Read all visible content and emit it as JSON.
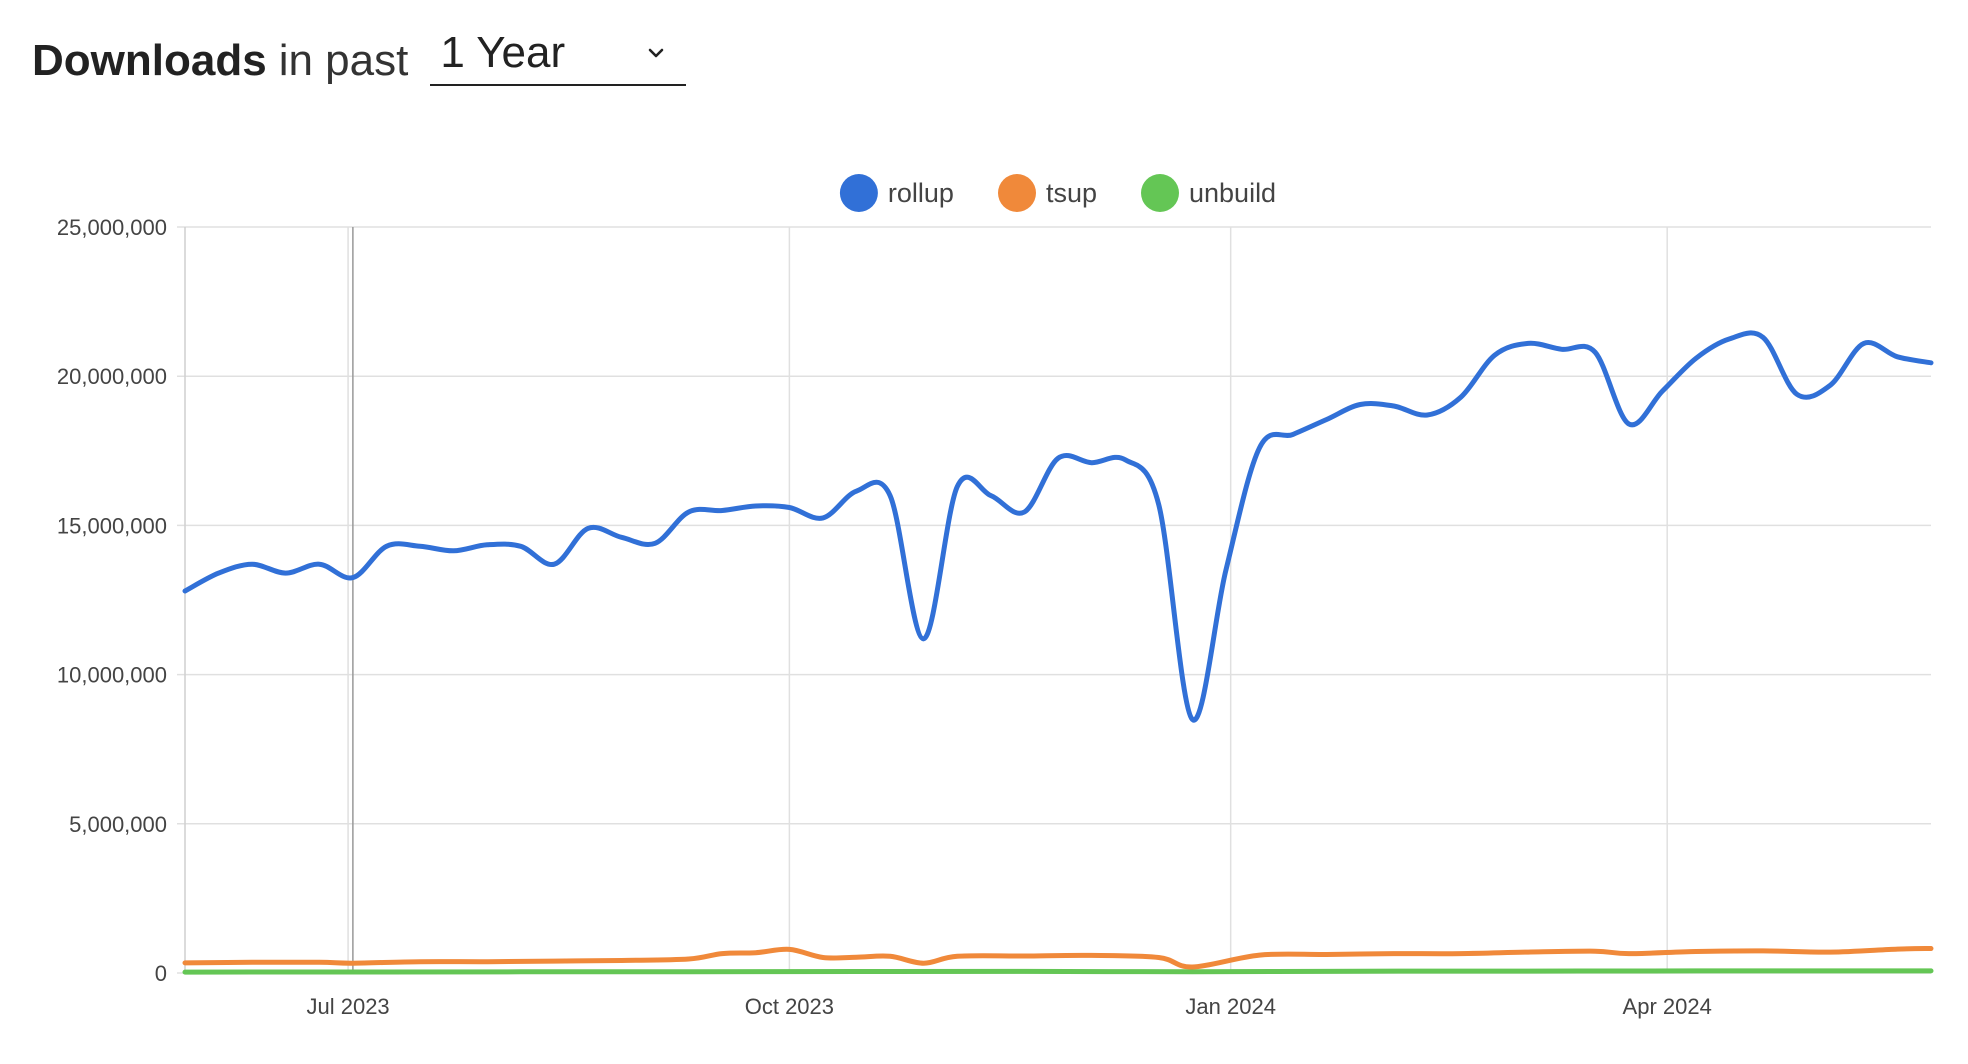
{
  "header": {
    "title": "Downloads",
    "subtitle": "in past",
    "range_value": "1 Year"
  },
  "colors": {
    "rollup": "#3170d7",
    "tsup": "#f0893a",
    "unbuild": "#64c655",
    "grid": "#e0e0e0",
    "hover_line": "#999999"
  },
  "chart_data": {
    "type": "line",
    "title": "",
    "xlabel": "",
    "ylabel": "",
    "ylim": [
      0,
      25000000
    ],
    "grid": true,
    "legend_position": "top-center",
    "y_ticks": [
      {
        "value": 0,
        "label": "0"
      },
      {
        "value": 5000000,
        "label": "5,000,000"
      },
      {
        "value": 10000000,
        "label": "10,000,000"
      },
      {
        "value": 15000000,
        "label": "15,000,000"
      },
      {
        "value": 20000000,
        "label": "20,000,000"
      },
      {
        "value": 25000000,
        "label": "25,000,000"
      }
    ],
    "x_ticks": [
      {
        "date": "2023-07-01",
        "label": "Jul 2023"
      },
      {
        "date": "2023-10-01",
        "label": "Oct 2023"
      },
      {
        "date": "2024-01-01",
        "label": "Jan 2024"
      },
      {
        "date": "2024-04-01",
        "label": "Apr 2024"
      }
    ],
    "x_range": [
      "2023-05-28",
      "2024-05-26"
    ],
    "hover_date": "2023-07-02",
    "series": [
      {
        "name": "rollup",
        "color": "#3170d7",
        "points": [
          [
            "2023-05-28",
            12800000
          ],
          [
            "2023-06-04",
            13400000
          ],
          [
            "2023-06-11",
            13700000
          ],
          [
            "2023-06-18",
            13400000
          ],
          [
            "2023-06-25",
            13700000
          ],
          [
            "2023-07-02",
            13250000
          ],
          [
            "2023-07-09",
            14300000
          ],
          [
            "2023-07-16",
            14300000
          ],
          [
            "2023-07-23",
            14150000
          ],
          [
            "2023-07-30",
            14350000
          ],
          [
            "2023-08-06",
            14300000
          ],
          [
            "2023-08-13",
            13700000
          ],
          [
            "2023-08-20",
            14900000
          ],
          [
            "2023-08-27",
            14600000
          ],
          [
            "2023-09-03",
            14400000
          ],
          [
            "2023-09-10",
            15450000
          ],
          [
            "2023-09-17",
            15500000
          ],
          [
            "2023-09-24",
            15650000
          ],
          [
            "2023-10-01",
            15600000
          ],
          [
            "2023-10-08",
            15250000
          ],
          [
            "2023-10-15",
            16150000
          ],
          [
            "2023-10-22",
            16000000
          ],
          [
            "2023-10-29",
            11200000
          ],
          [
            "2023-11-05",
            16300000
          ],
          [
            "2023-11-12",
            16000000
          ],
          [
            "2023-11-19",
            15450000
          ],
          [
            "2023-11-26",
            17250000
          ],
          [
            "2023-12-03",
            17100000
          ],
          [
            "2023-12-10",
            17200000
          ],
          [
            "2023-12-17",
            15700000
          ],
          [
            "2023-12-24",
            8500000
          ],
          [
            "2023-12-31",
            13500000
          ],
          [
            "2024-01-07",
            17600000
          ],
          [
            "2024-01-14",
            18050000
          ],
          [
            "2024-01-21",
            18550000
          ],
          [
            "2024-01-28",
            19050000
          ],
          [
            "2024-02-04",
            19000000
          ],
          [
            "2024-02-11",
            18700000
          ],
          [
            "2024-02-18",
            19300000
          ],
          [
            "2024-02-25",
            20700000
          ],
          [
            "2024-03-03",
            21100000
          ],
          [
            "2024-03-10",
            20900000
          ],
          [
            "2024-03-17",
            20800000
          ],
          [
            "2024-03-24",
            18400000
          ],
          [
            "2024-03-31",
            19500000
          ],
          [
            "2024-04-07",
            20600000
          ],
          [
            "2024-04-14",
            21250000
          ],
          [
            "2024-04-21",
            21300000
          ],
          [
            "2024-04-28",
            19400000
          ],
          [
            "2024-05-05",
            19700000
          ],
          [
            "2024-05-12",
            21100000
          ],
          [
            "2024-05-19",
            20650000
          ],
          [
            "2024-05-26",
            20450000
          ]
        ]
      },
      {
        "name": "tsup",
        "color": "#f0893a",
        "points": [
          [
            "2023-05-28",
            340000
          ],
          [
            "2023-06-11",
            360000
          ],
          [
            "2023-06-25",
            360000
          ],
          [
            "2023-07-02",
            330000
          ],
          [
            "2023-07-16",
            380000
          ],
          [
            "2023-07-30",
            380000
          ],
          [
            "2023-08-13",
            400000
          ],
          [
            "2023-08-27",
            420000
          ],
          [
            "2023-09-10",
            470000
          ],
          [
            "2023-09-17",
            650000
          ],
          [
            "2023-09-24",
            680000
          ],
          [
            "2023-10-01",
            790000
          ],
          [
            "2023-10-08",
            520000
          ],
          [
            "2023-10-15",
            530000
          ],
          [
            "2023-10-22",
            560000
          ],
          [
            "2023-10-29",
            330000
          ],
          [
            "2023-11-05",
            560000
          ],
          [
            "2023-11-19",
            570000
          ],
          [
            "2023-12-03",
            590000
          ],
          [
            "2023-12-17",
            520000
          ],
          [
            "2023-12-24",
            200000
          ],
          [
            "2024-01-07",
            600000
          ],
          [
            "2024-01-21",
            620000
          ],
          [
            "2024-02-04",
            650000
          ],
          [
            "2024-02-18",
            650000
          ],
          [
            "2024-03-03",
            700000
          ],
          [
            "2024-03-17",
            730000
          ],
          [
            "2024-03-24",
            650000
          ],
          [
            "2024-04-07",
            720000
          ],
          [
            "2024-04-21",
            740000
          ],
          [
            "2024-05-05",
            700000
          ],
          [
            "2024-05-19",
            800000
          ],
          [
            "2024-05-26",
            820000
          ]
        ]
      },
      {
        "name": "unbuild",
        "color": "#64c655",
        "points": [
          [
            "2023-05-28",
            30000
          ],
          [
            "2023-07-02",
            35000
          ],
          [
            "2023-08-06",
            40000
          ],
          [
            "2023-09-10",
            45000
          ],
          [
            "2023-10-15",
            50000
          ],
          [
            "2023-11-19",
            55000
          ],
          [
            "2023-12-24",
            40000
          ],
          [
            "2024-01-28",
            60000
          ],
          [
            "2024-03-03",
            65000
          ],
          [
            "2024-04-07",
            70000
          ],
          [
            "2024-05-26",
            70000
          ]
        ]
      }
    ]
  }
}
